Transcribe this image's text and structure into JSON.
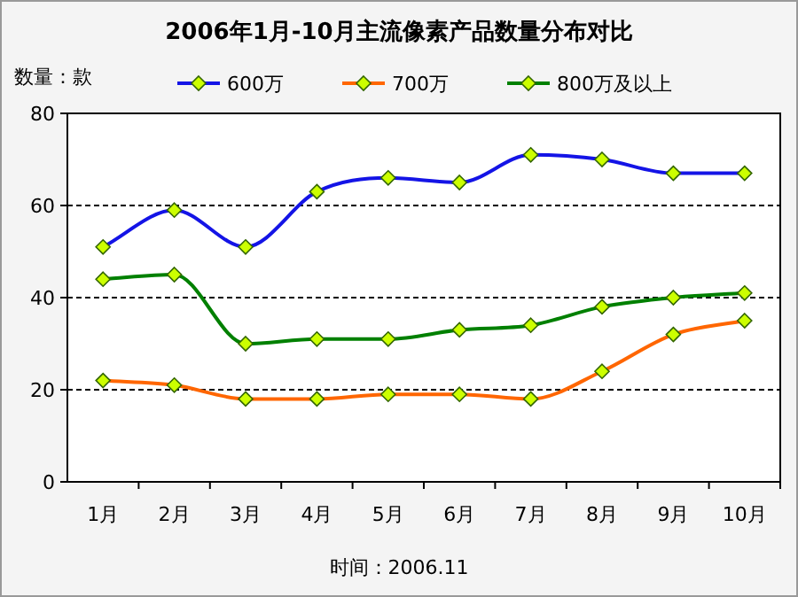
{
  "chart_data": {
    "type": "line",
    "title": "2006年1月-10月主流像素产品数量分布对比",
    "ylabel": "数量：款",
    "categories": [
      "1月",
      "2月",
      "3月",
      "4月",
      "5月",
      "6月",
      "7月",
      "8月",
      "9月",
      "10月"
    ],
    "series": [
      {
        "name": "600万",
        "color": "#1414e6",
        "values": [
          51,
          59,
          51,
          63,
          66,
          65,
          71,
          70,
          67,
          67
        ]
      },
      {
        "name": "700万",
        "color": "#ff6600",
        "values": [
          22,
          21,
          18,
          18,
          19,
          19,
          18,
          24,
          32,
          35
        ]
      },
      {
        "name": "800万及以上",
        "color": "#008000",
        "values": [
          44,
          45,
          30,
          31,
          31,
          33,
          34,
          38,
          40,
          41
        ]
      }
    ],
    "ylim": [
      0,
      80
    ],
    "yticks": [
      0,
      20,
      40,
      60,
      80
    ],
    "grid": "y",
    "legend": "top",
    "marker": "diamond",
    "line_style": "solid",
    "annotations": [
      "时间：2006.11"
    ]
  }
}
